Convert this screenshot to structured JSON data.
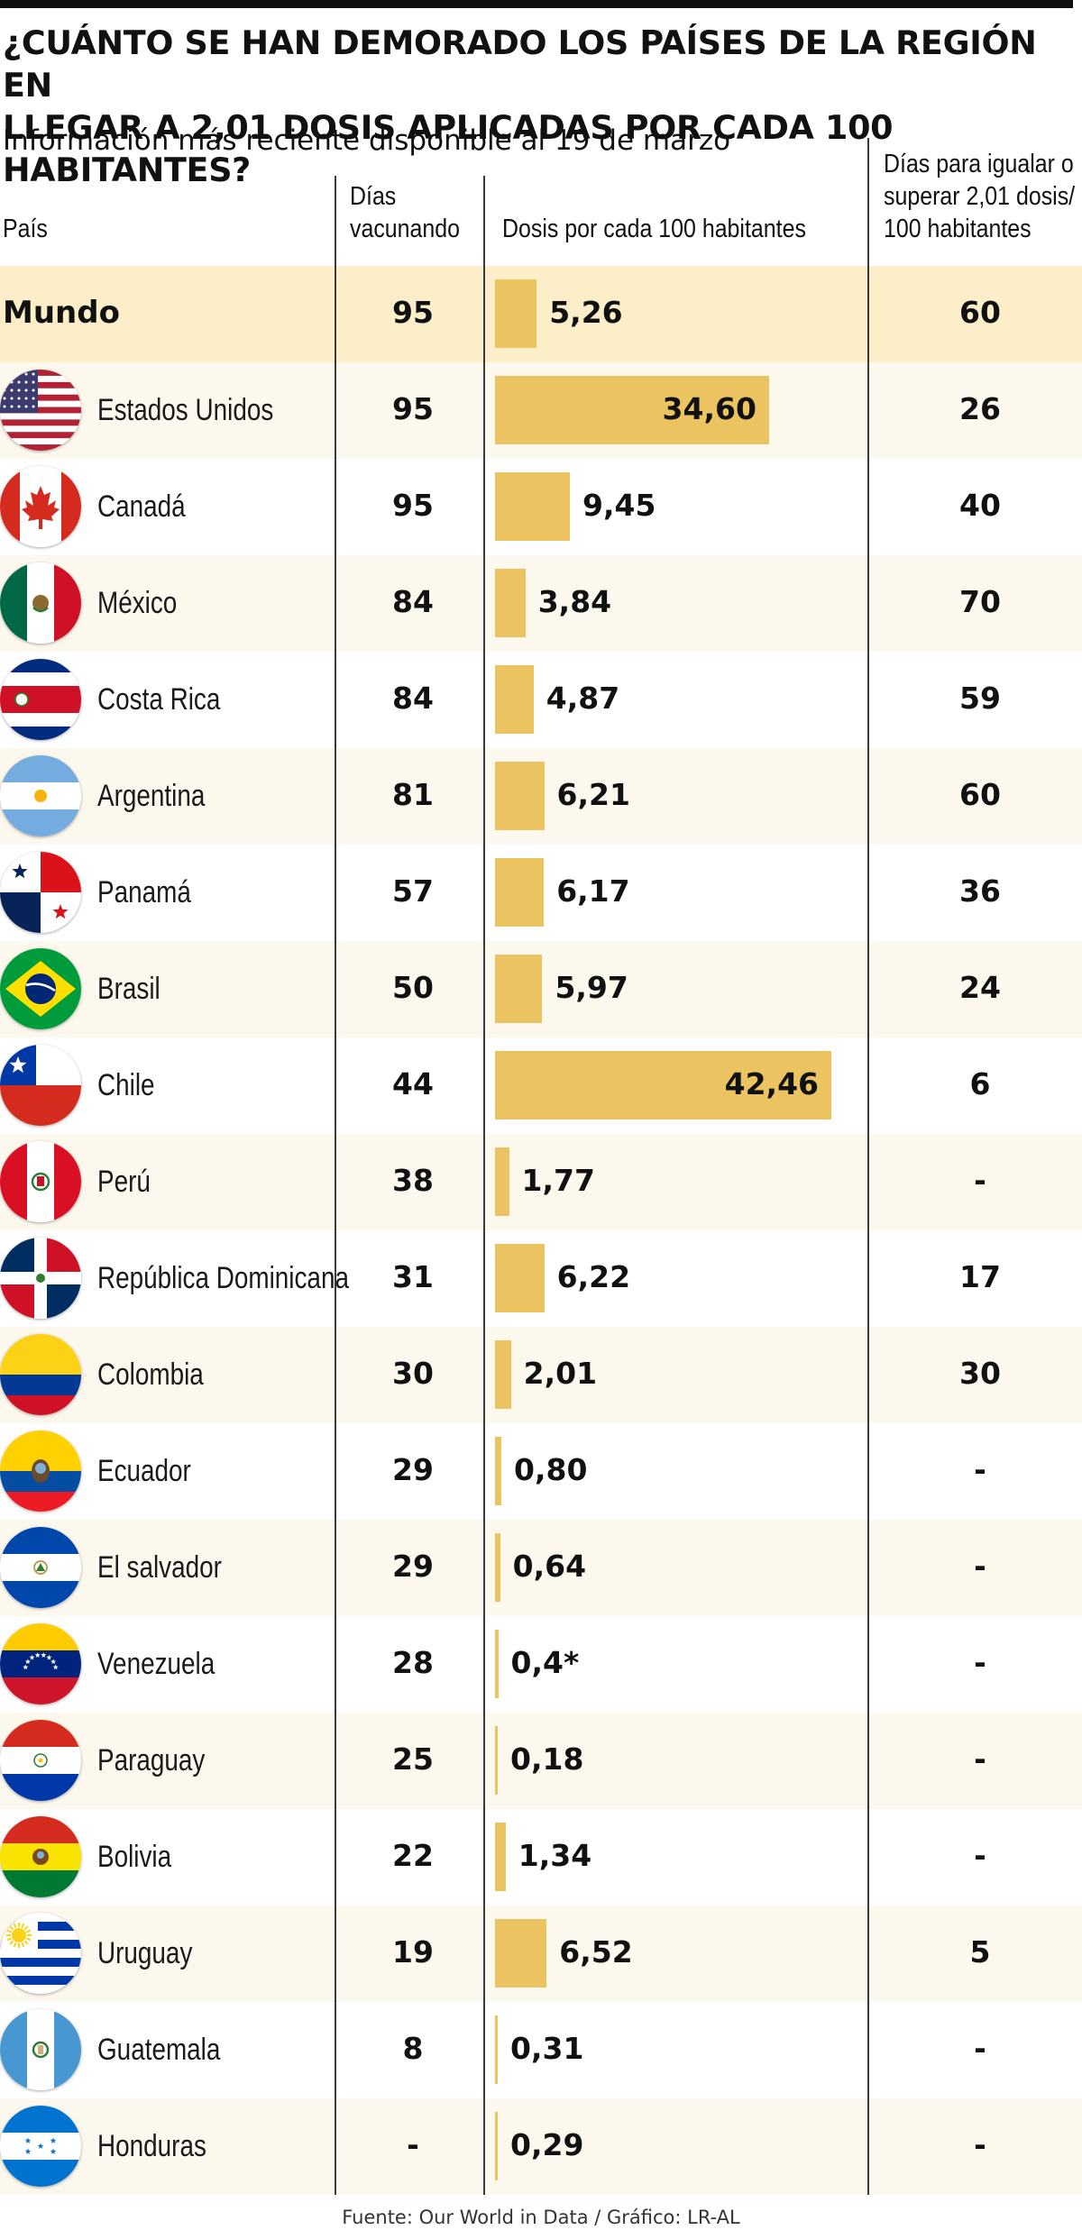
{
  "header": {
    "title_line1": "¿CUÁNTO SE HAN DEMORADO LOS PAÍSES DE LA REGIÓN EN",
    "title_line2": "LLEGAR A 2,01 DOSIS APLICADAS POR CADA 100 HABITANTES?",
    "subtitle": "Información más reciente disponible al 19 de marzo"
  },
  "columns": {
    "country": "País",
    "days_line1": "Días",
    "days_line2": "vacunando",
    "doses": "Dosis por cada 100 habitantes",
    "target_line1": "Días para igualar o",
    "target_line2": "superar 2,01 dosis/",
    "target_line3": "100 habitantes"
  },
  "footer": {
    "source": "Fuente: Our World in Data / Gráfico: LR-AL"
  },
  "colors": {
    "bar": "#ebc361",
    "world_row": "#fbeec9",
    "alt_row": "#fdf8ee",
    "rule": "#111111"
  },
  "chart_data": {
    "type": "table",
    "title": "¿CUÁNTO SE HAN DEMORADO LOS PAÍSES DE LA REGIÓN EN LLEGAR A 2,01 DOSIS APLICADAS POR CADA 100 HABITANTES?",
    "subtitle": "Información más reciente disponible al 19 de marzo",
    "columns": [
      "País",
      "Días vacunando",
      "Dosis por cada 100 habitantes",
      "Días para igualar o superar 2,01 dosis/ 100 habitantes"
    ],
    "bar_column": "Dosis por cada 100 habitantes",
    "rows": [
      {
        "country": "Mundo",
        "flag": "world",
        "days": "95",
        "doses": 5.26,
        "doses_label": "5,26",
        "target": "60"
      },
      {
        "country": "Estados Unidos",
        "flag": "usa-flag-icon",
        "days": "95",
        "doses": 34.6,
        "doses_label": "34,60",
        "target": "26"
      },
      {
        "country": "Canadá",
        "flag": "canada-flag-icon",
        "days": "95",
        "doses": 9.45,
        "doses_label": "9,45",
        "target": "40"
      },
      {
        "country": "México",
        "flag": "mexico-flag-icon",
        "days": "84",
        "doses": 3.84,
        "doses_label": "3,84",
        "target": "70"
      },
      {
        "country": "Costa Rica",
        "flag": "costa-rica-flag-icon",
        "days": "84",
        "doses": 4.87,
        "doses_label": "4,87",
        "target": "59"
      },
      {
        "country": "Argentina",
        "flag": "argentina-flag-icon",
        "days": "81",
        "doses": 6.21,
        "doses_label": "6,21",
        "target": "60"
      },
      {
        "country": "Panamá",
        "flag": "panama-flag-icon",
        "days": "57",
        "doses": 6.17,
        "doses_label": "6,17",
        "target": "36"
      },
      {
        "country": "Brasil",
        "flag": "brazil-flag-icon",
        "days": "50",
        "doses": 5.97,
        "doses_label": "5,97",
        "target": "24"
      },
      {
        "country": "Chile",
        "flag": "chile-flag-icon",
        "days": "44",
        "doses": 42.46,
        "doses_label": "42,46",
        "target": "6"
      },
      {
        "country": "Perú",
        "flag": "peru-flag-icon",
        "days": "38",
        "doses": 1.77,
        "doses_label": "1,77",
        "target": "-"
      },
      {
        "country": "República Dominicana",
        "flag": "dominican-republic-flag-icon",
        "days": "31",
        "doses": 6.22,
        "doses_label": "6,22",
        "target": "17"
      },
      {
        "country": "Colombia",
        "flag": "colombia-flag-icon",
        "days": "30",
        "doses": 2.01,
        "doses_label": "2,01",
        "target": "30"
      },
      {
        "country": "Ecuador",
        "flag": "ecuador-flag-icon",
        "days": "29",
        "doses": 0.8,
        "doses_label": "0,80",
        "target": "-"
      },
      {
        "country": "El salvador",
        "flag": "el-salvador-flag-icon",
        "days": "29",
        "doses": 0.64,
        "doses_label": "0,64",
        "target": "-"
      },
      {
        "country": "Venezuela",
        "flag": "venezuela-flag-icon",
        "days": "28",
        "doses": 0.4,
        "doses_label": "0,4*",
        "target": "-"
      },
      {
        "country": "Paraguay",
        "flag": "paraguay-flag-icon",
        "days": "25",
        "doses": 0.18,
        "doses_label": "0,18",
        "target": "-"
      },
      {
        "country": "Bolivia",
        "flag": "bolivia-flag-icon",
        "days": "22",
        "doses": 1.34,
        "doses_label": "1,34",
        "target": "-"
      },
      {
        "country": "Uruguay",
        "flag": "uruguay-flag-icon",
        "days": "19",
        "doses": 6.52,
        "doses_label": "6,52",
        "target": "5"
      },
      {
        "country": "Guatemala",
        "flag": "guatemala-flag-icon",
        "days": "8",
        "doses": 0.31,
        "doses_label": "0,31",
        "target": "-"
      },
      {
        "country": "Honduras",
        "flag": "honduras-flag-icon",
        "days": "-",
        "doses": 0.29,
        "doses_label": "0,29",
        "target": "-"
      }
    ]
  }
}
